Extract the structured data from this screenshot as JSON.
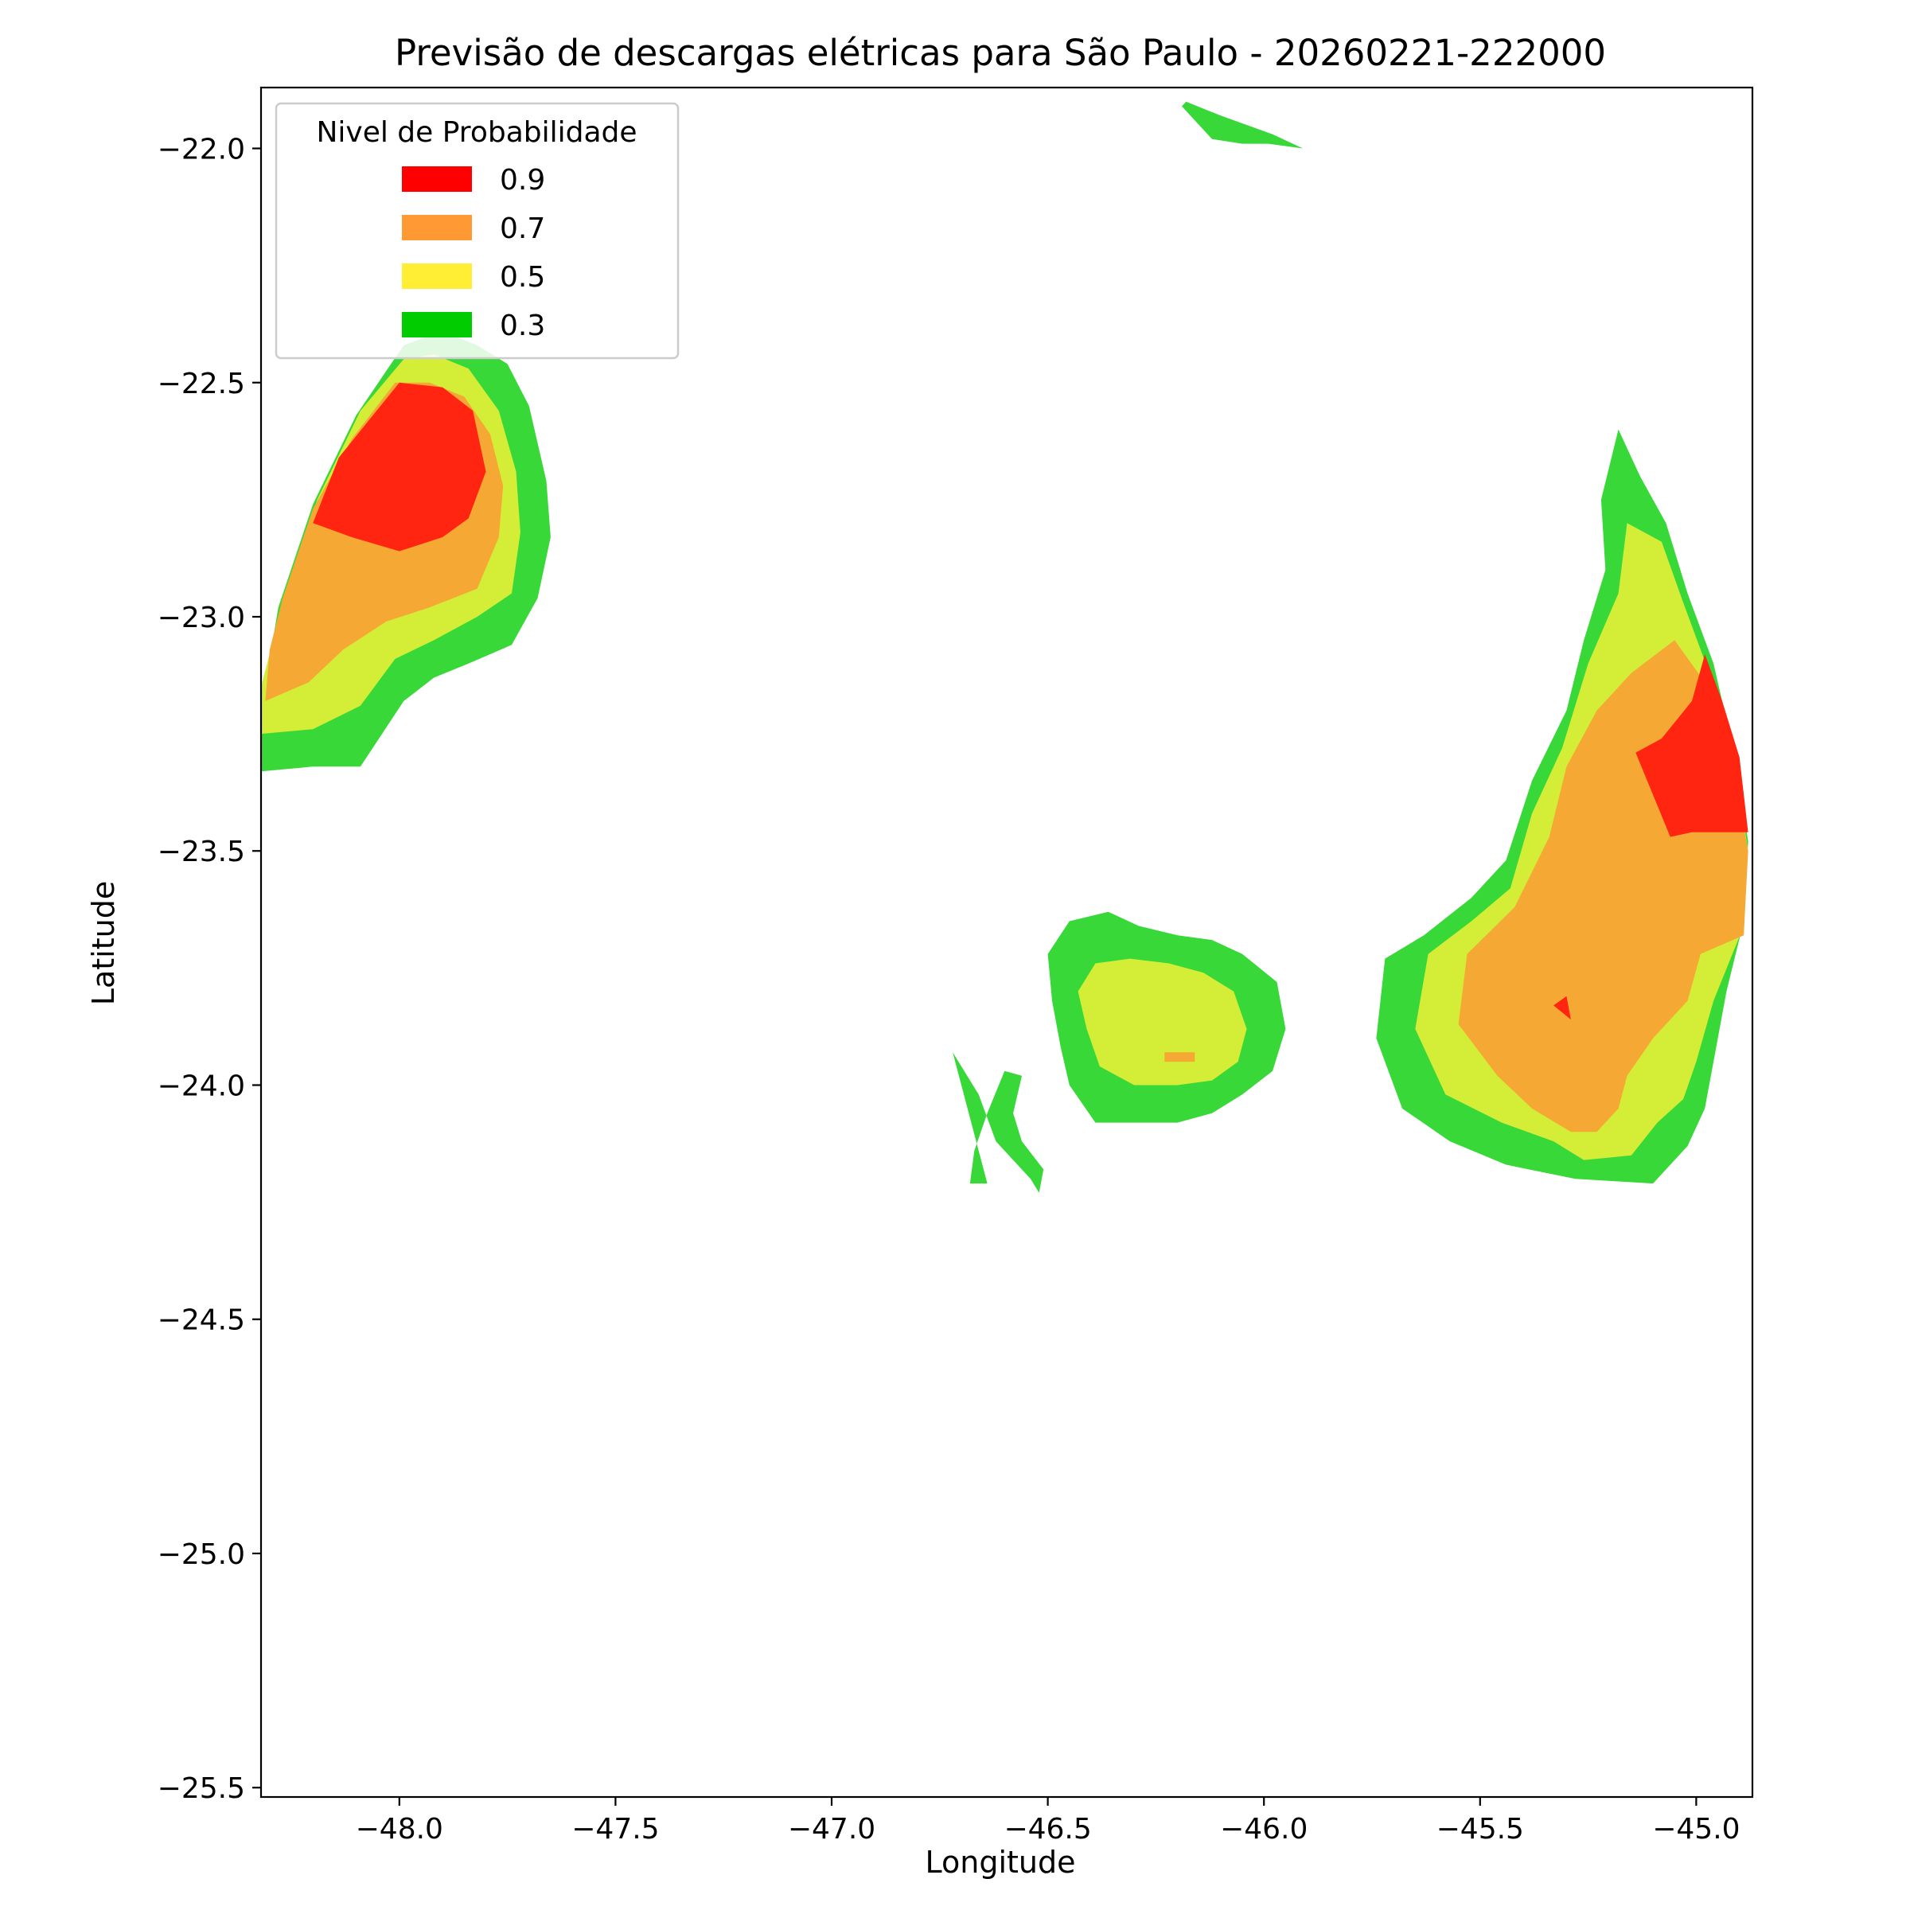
{
  "chart_data": {
    "type": "contour",
    "title": "Previsão de descargas elétricas para São Paulo - 20260221-222000",
    "xlabel": "Longitude",
    "ylabel": "Latitude",
    "xlim": [
      -48.32,
      -44.87
    ],
    "ylim": [
      -25.52,
      -21.87
    ],
    "x_ticks": [
      -48.0,
      -47.5,
      -47.0,
      -46.5,
      -46.0,
      -45.5,
      -45.0
    ],
    "x_tick_labels": [
      "−48.0",
      "−47.5",
      "−47.0",
      "−46.5",
      "−46.0",
      "−45.5",
      "−45.0"
    ],
    "y_ticks": [
      -22.0,
      -22.5,
      -23.0,
      -23.5,
      -24.0,
      -24.5,
      -25.0,
      -25.5
    ],
    "y_tick_labels": [
      "−22.0",
      "−22.5",
      "−23.0",
      "−23.5",
      "−24.0",
      "−24.5",
      "−25.0",
      "−25.5"
    ],
    "legend": {
      "title": "Nivel de Probabilidade",
      "placement": "upper-left",
      "entries": [
        {
          "label": "0.9",
          "color": "#ff0000"
        },
        {
          "label": "0.7",
          "color": "#ff9933"
        },
        {
          "label": "0.5",
          "color": "#ffee33"
        },
        {
          "label": "0.3",
          "color": "#00cc00"
        }
      ]
    },
    "fill_colors": {
      "0.3": "#38d838",
      "0.5": "#d4ee38",
      "0.7": "#f5a833",
      "0.9": "#ff2510"
    },
    "regions": [
      {
        "level": "0.3",
        "polygon": [
          [
            -46.18,
            -21.9
          ],
          [
            -46.1,
            -21.93
          ],
          [
            -45.98,
            -21.97
          ],
          [
            -45.91,
            -22.0
          ],
          [
            -45.99,
            -21.99
          ],
          [
            -46.05,
            -21.99
          ],
          [
            -46.12,
            -21.98
          ],
          [
            -46.16,
            -21.94
          ],
          [
            -46.19,
            -21.91
          ]
        ]
      },
      {
        "level": "0.3",
        "polygon": [
          [
            -48.32,
            -23.33
          ],
          [
            -48.2,
            -23.32
          ],
          [
            -48.09,
            -23.32
          ],
          [
            -47.99,
            -23.18
          ],
          [
            -47.92,
            -23.13
          ],
          [
            -47.84,
            -23.1
          ],
          [
            -47.74,
            -23.06
          ],
          [
            -47.68,
            -22.96
          ],
          [
            -47.65,
            -22.83
          ],
          [
            -47.66,
            -22.71
          ],
          [
            -47.7,
            -22.55
          ],
          [
            -47.75,
            -22.46
          ],
          [
            -47.82,
            -22.42
          ],
          [
            -47.9,
            -22.39
          ],
          [
            -47.99,
            -22.42
          ],
          [
            -48.1,
            -22.57
          ],
          [
            -48.2,
            -22.76
          ],
          [
            -48.28,
            -22.98
          ],
          [
            -48.32,
            -23.2
          ]
        ]
      },
      {
        "level": "0.5",
        "polygon": [
          [
            -48.32,
            -23.25
          ],
          [
            -48.2,
            -23.24
          ],
          [
            -48.09,
            -23.19
          ],
          [
            -48.01,
            -23.09
          ],
          [
            -47.92,
            -23.05
          ],
          [
            -47.82,
            -23.0
          ],
          [
            -47.74,
            -22.95
          ],
          [
            -47.72,
            -22.82
          ],
          [
            -47.73,
            -22.69
          ],
          [
            -47.77,
            -22.56
          ],
          [
            -47.84,
            -22.47
          ],
          [
            -47.92,
            -22.44
          ],
          [
            -47.99,
            -22.45
          ],
          [
            -48.09,
            -22.56
          ],
          [
            -48.19,
            -22.75
          ],
          [
            -48.27,
            -22.97
          ],
          [
            -48.32,
            -23.15
          ]
        ]
      },
      {
        "level": "0.7",
        "polygon": [
          [
            -48.31,
            -23.18
          ],
          [
            -48.21,
            -23.14
          ],
          [
            -48.13,
            -23.07
          ],
          [
            -48.03,
            -23.01
          ],
          [
            -47.93,
            -22.98
          ],
          [
            -47.82,
            -22.94
          ],
          [
            -47.77,
            -22.83
          ],
          [
            -47.76,
            -22.72
          ],
          [
            -47.79,
            -22.61
          ],
          [
            -47.85,
            -22.53
          ],
          [
            -47.93,
            -22.5
          ],
          [
            -48.01,
            -22.5
          ],
          [
            -48.11,
            -22.62
          ],
          [
            -48.2,
            -22.77
          ],
          [
            -48.27,
            -22.96
          ],
          [
            -48.3,
            -23.07
          ]
        ]
      },
      {
        "level": "0.9",
        "polygon": [
          [
            -48.2,
            -22.8
          ],
          [
            -48.11,
            -22.83
          ],
          [
            -48.0,
            -22.86
          ],
          [
            -47.9,
            -22.83
          ],
          [
            -47.84,
            -22.79
          ],
          [
            -47.8,
            -22.69
          ],
          [
            -47.83,
            -22.56
          ],
          [
            -47.9,
            -22.51
          ],
          [
            -48.0,
            -22.5
          ],
          [
            -48.07,
            -22.58
          ],
          [
            -48.14,
            -22.66
          ]
        ]
      },
      {
        "level": "0.3",
        "polygon": [
          [
            -46.45,
            -24.0
          ],
          [
            -46.39,
            -24.08
          ],
          [
            -46.29,
            -24.08
          ],
          [
            -46.2,
            -24.08
          ],
          [
            -46.12,
            -24.06
          ],
          [
            -46.05,
            -24.02
          ],
          [
            -45.98,
            -23.97
          ],
          [
            -45.95,
            -23.88
          ],
          [
            -45.97,
            -23.78
          ],
          [
            -46.05,
            -23.72
          ],
          [
            -46.12,
            -23.69
          ],
          [
            -46.2,
            -23.68
          ],
          [
            -46.29,
            -23.66
          ],
          [
            -46.36,
            -23.63
          ],
          [
            -46.45,
            -23.65
          ],
          [
            -46.5,
            -23.72
          ],
          [
            -46.49,
            -23.82
          ],
          [
            -46.47,
            -23.92
          ]
        ]
      },
      {
        "level": "0.5",
        "polygon": [
          [
            -46.38,
            -23.96
          ],
          [
            -46.3,
            -24.0
          ],
          [
            -46.2,
            -24.0
          ],
          [
            -46.12,
            -23.99
          ],
          [
            -46.06,
            -23.95
          ],
          [
            -46.04,
            -23.88
          ],
          [
            -46.07,
            -23.8
          ],
          [
            -46.14,
            -23.76
          ],
          [
            -46.22,
            -23.74
          ],
          [
            -46.31,
            -23.73
          ],
          [
            -46.39,
            -23.74
          ],
          [
            -46.43,
            -23.8
          ],
          [
            -46.41,
            -23.88
          ]
        ]
      },
      {
        "level": "0.7",
        "polygon": [
          [
            -46.23,
            -23.93
          ],
          [
            -46.16,
            -23.93
          ],
          [
            -46.16,
            -23.95
          ],
          [
            -46.23,
            -23.95
          ]
        ]
      },
      {
        "level": "0.3",
        "polygon": [
          [
            -46.72,
            -23.93
          ],
          [
            -46.66,
            -24.02
          ],
          [
            -46.62,
            -24.12
          ],
          [
            -46.54,
            -24.2
          ],
          [
            -46.52,
            -24.23
          ],
          [
            -46.51,
            -24.18
          ],
          [
            -46.56,
            -24.12
          ],
          [
            -46.58,
            -24.06
          ],
          [
            -46.56,
            -23.98
          ],
          [
            -46.6,
            -23.97
          ],
          [
            -46.64,
            -24.06
          ],
          [
            -46.67,
            -24.14
          ],
          [
            -46.68,
            -24.21
          ],
          [
            -46.64,
            -24.21
          ]
        ]
      },
      {
        "level": "0.3",
        "polygon": [
          [
            -45.28,
            -24.2
          ],
          [
            -45.1,
            -24.21
          ],
          [
            -45.02,
            -24.13
          ],
          [
            -44.98,
            -24.05
          ],
          [
            -44.96,
            -23.95
          ],
          [
            -44.93,
            -23.8
          ],
          [
            -44.89,
            -23.65
          ],
          [
            -44.88,
            -23.48
          ],
          [
            -44.91,
            -23.3
          ],
          [
            -44.96,
            -23.1
          ],
          [
            -45.02,
            -22.95
          ],
          [
            -45.07,
            -22.8
          ],
          [
            -45.13,
            -22.7
          ],
          [
            -45.18,
            -22.6
          ],
          [
            -45.22,
            -22.75
          ],
          [
            -45.21,
            -22.9
          ],
          [
            -45.26,
            -23.05
          ],
          [
            -45.3,
            -23.2
          ],
          [
            -45.38,
            -23.35
          ],
          [
            -45.44,
            -23.52
          ],
          [
            -45.52,
            -23.6
          ],
          [
            -45.63,
            -23.68
          ],
          [
            -45.72,
            -23.73
          ],
          [
            -45.74,
            -23.9
          ],
          [
            -45.68,
            -24.05
          ],
          [
            -45.57,
            -24.12
          ],
          [
            -45.44,
            -24.17
          ]
        ]
      },
      {
        "level": "0.5",
        "polygon": [
          [
            -45.26,
            -24.16
          ],
          [
            -45.15,
            -24.15
          ],
          [
            -45.09,
            -24.08
          ],
          [
            -45.03,
            -24.03
          ],
          [
            -45.0,
            -23.95
          ],
          [
            -44.96,
            -23.82
          ],
          [
            -44.89,
            -23.66
          ],
          [
            -44.88,
            -23.5
          ],
          [
            -44.91,
            -23.32
          ],
          [
            -44.97,
            -23.12
          ],
          [
            -45.03,
            -22.97
          ],
          [
            -45.08,
            -22.84
          ],
          [
            -45.16,
            -22.8
          ],
          [
            -45.18,
            -22.95
          ],
          [
            -45.25,
            -23.1
          ],
          [
            -45.31,
            -23.28
          ],
          [
            -45.38,
            -23.42
          ],
          [
            -45.43,
            -23.58
          ],
          [
            -45.52,
            -23.65
          ],
          [
            -45.62,
            -23.72
          ],
          [
            -45.65,
            -23.88
          ],
          [
            -45.58,
            -24.02
          ],
          [
            -45.45,
            -24.08
          ],
          [
            -45.33,
            -24.12
          ]
        ]
      },
      {
        "level": "0.7",
        "polygon": [
          [
            -45.23,
            -24.1
          ],
          [
            -45.18,
            -24.05
          ],
          [
            -45.16,
            -23.98
          ],
          [
            -45.1,
            -23.9
          ],
          [
            -45.02,
            -23.82
          ],
          [
            -44.99,
            -23.72
          ],
          [
            -44.89,
            -23.68
          ],
          [
            -44.88,
            -23.5
          ],
          [
            -44.92,
            -23.3
          ],
          [
            -44.98,
            -23.14
          ],
          [
            -45.05,
            -23.05
          ],
          [
            -45.15,
            -23.12
          ],
          [
            -45.23,
            -23.2
          ],
          [
            -45.3,
            -23.32
          ],
          [
            -45.34,
            -23.47
          ],
          [
            -45.42,
            -23.62
          ],
          [
            -45.53,
            -23.72
          ],
          [
            -45.55,
            -23.87
          ],
          [
            -45.46,
            -23.98
          ],
          [
            -45.38,
            -24.05
          ],
          [
            -45.29,
            -24.1
          ]
        ]
      },
      {
        "level": "0.9",
        "polygon": [
          [
            -44.88,
            -23.46
          ],
          [
            -45.01,
            -23.46
          ],
          [
            -45.06,
            -23.47
          ],
          [
            -45.14,
            -23.29
          ],
          [
            -45.08,
            -23.26
          ],
          [
            -45.01,
            -23.18
          ],
          [
            -44.98,
            -23.08
          ],
          [
            -44.94,
            -23.18
          ],
          [
            -44.9,
            -23.3
          ]
        ]
      },
      {
        "level": "0.9",
        "polygon": [
          [
            -45.33,
            -23.83
          ],
          [
            -45.3,
            -23.81
          ],
          [
            -45.29,
            -23.86
          ]
        ]
      }
    ]
  }
}
